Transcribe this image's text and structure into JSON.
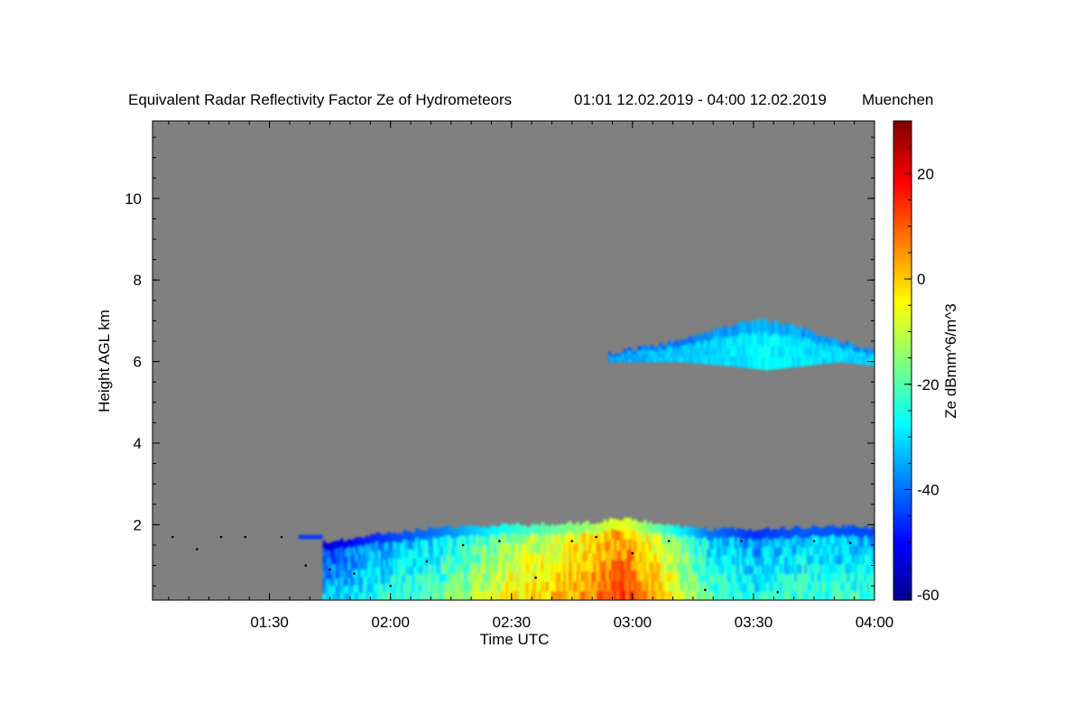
{
  "chart_data": {
    "type": "heatmap",
    "title": "Equivalent Radar Reflectivity Factor Ze of Hydrometeors",
    "time_range": "01:01 12.02.2019 - 04:00 12.02.2019",
    "location": "Muenchen",
    "xlabel": "Time UTC",
    "ylabel": "Height AGL km",
    "colorbar_label": "Ze dBmm^6/m^3",
    "x_unit": "hours UTC",
    "xlim": [
      1.0167,
      4.0
    ],
    "ylim": [
      0.15,
      11.9
    ],
    "x_ticks": [
      {
        "value": 1.5,
        "label": "01:30"
      },
      {
        "value": 2.0,
        "label": "02:00"
      },
      {
        "value": 2.5,
        "label": "02:30"
      },
      {
        "value": 3.0,
        "label": "03:00"
      },
      {
        "value": 3.5,
        "label": "03:30"
      },
      {
        "value": 4.0,
        "label": "04:00"
      }
    ],
    "y_ticks": [
      {
        "value": 2,
        "label": "2"
      },
      {
        "value": 4,
        "label": "4"
      },
      {
        "value": 6,
        "label": "6"
      },
      {
        "value": 8,
        "label": "8"
      },
      {
        "value": 10,
        "label": "10"
      }
    ],
    "colorbar_range": [
      -61,
      30
    ],
    "colorbar_ticks": [
      {
        "value": 20,
        "label": "20"
      },
      {
        "value": 0,
        "label": "0"
      },
      {
        "value": -20,
        "label": "-20"
      },
      {
        "value": -40,
        "label": "-40"
      },
      {
        "value": -60,
        "label": "-60"
      }
    ],
    "background_color": "#808080",
    "colormap": [
      "#00008f",
      "#0000ff",
      "#00ffff",
      "#ffff00",
      "#ff0000",
      "#800000"
    ],
    "grid": false,
    "low_cloud_layer": {
      "description_ze_dbz": "reflectivity columns up to ~2 km",
      "time": [
        1.72,
        1.85,
        2.0,
        2.2,
        2.5,
        2.8,
        2.95,
        3.1,
        3.3,
        3.5,
        3.7,
        4.0
      ],
      "top_km": [
        1.6,
        1.75,
        1.85,
        2.0,
        2.05,
        2.1,
        2.2,
        2.1,
        1.95,
        1.95,
        2.0,
        2.0
      ],
      "mean_ze": [
        -40,
        -35,
        -30,
        -25,
        -10,
        0,
        8,
        -5,
        -25,
        -32,
        -28,
        -30
      ]
    },
    "upper_cloud_layer": {
      "time": [
        2.9,
        3.2,
        3.4,
        3.55,
        3.7,
        3.85,
        4.0
      ],
      "base_km": [
        6.0,
        6.0,
        5.9,
        5.8,
        5.9,
        6.0,
        5.9
      ],
      "top_km": [
        6.2,
        6.5,
        6.9,
        7.0,
        6.8,
        6.5,
        6.3
      ],
      "mean_ze": [
        -35,
        -32,
        -30,
        -28,
        -30,
        -30,
        -32
      ]
    },
    "cloud_base_points": {
      "time": [
        1.1,
        1.2,
        1.3,
        1.4,
        1.55,
        1.65,
        1.75,
        1.85,
        2.0,
        2.15,
        2.3,
        2.45,
        2.6,
        2.75,
        2.85,
        3.0,
        3.15,
        3.3,
        3.45,
        3.6,
        3.75,
        3.9
      ],
      "height_km": [
        1.7,
        1.4,
        1.7,
        1.7,
        1.7,
        1.0,
        0.9,
        0.8,
        0.5,
        1.1,
        1.5,
        1.6,
        0.7,
        1.6,
        1.7,
        1.3,
        1.6,
        0.4,
        1.6,
        0.35,
        1.6,
        1.55
      ]
    }
  }
}
